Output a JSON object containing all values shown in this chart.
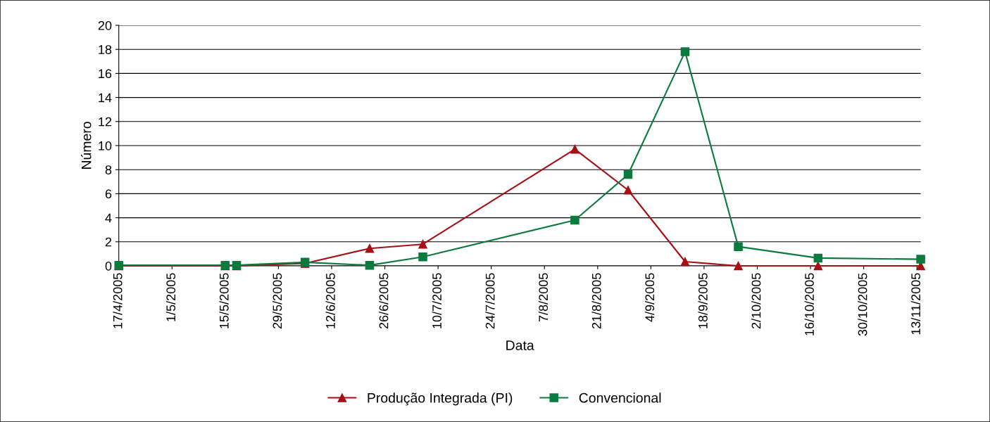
{
  "chart_data": {
    "type": "line",
    "xlabel": "Data",
    "ylabel": "Número",
    "xlim": [
      "2005-04-17",
      "2005-11-14"
    ],
    "ylim": [
      0,
      20
    ],
    "yticks": [
      0,
      2,
      4,
      6,
      8,
      10,
      12,
      14,
      16,
      18,
      20
    ],
    "xticks": [
      {
        "value": "2005-04-17",
        "label": "17/4/2005"
      },
      {
        "value": "2005-05-01",
        "label": "1/5/2005"
      },
      {
        "value": "2005-05-15",
        "label": "15/5/2005"
      },
      {
        "value": "2005-05-29",
        "label": "29/5/2005"
      },
      {
        "value": "2005-06-12",
        "label": "12/6/2005"
      },
      {
        "value": "2005-06-26",
        "label": "26/6/2005"
      },
      {
        "value": "2005-07-10",
        "label": "10/7/2005"
      },
      {
        "value": "2005-07-24",
        "label": "24/7/2005"
      },
      {
        "value": "2005-08-07",
        "label": "7/8/2005"
      },
      {
        "value": "2005-08-21",
        "label": "21/8/2005"
      },
      {
        "value": "2005-09-04",
        "label": "4/9/2005"
      },
      {
        "value": "2005-09-18",
        "label": "18/9/2005"
      },
      {
        "value": "2005-10-02",
        "label": "2/10/2005"
      },
      {
        "value": "2005-10-16",
        "label": "16/10/2005"
      },
      {
        "value": "2005-10-30",
        "label": "30/10/2005"
      },
      {
        "value": "2005-11-13",
        "label": "13/11/2005"
      }
    ],
    "x": [
      "2005-04-17",
      "2005-05-15",
      "2005-05-18",
      "2005-06-05",
      "2005-06-22",
      "2005-07-06",
      "2005-08-15",
      "2005-08-29",
      "2005-09-13",
      "2005-09-27",
      "2005-10-18",
      "2005-11-14"
    ],
    "grid": "y",
    "legend": "bottom",
    "line_style": "solid",
    "series": [
      {
        "name": "Produção Integrada (PI)",
        "color": "#a50f15",
        "marker": "triangle",
        "values": [
          0,
          0,
          0,
          0.2,
          1.45,
          1.8,
          9.7,
          6.3,
          0.35,
          0,
          0,
          0
        ]
      },
      {
        "name": "Convencional",
        "color": "#0b7a3e",
        "marker": "square",
        "values": [
          0.05,
          0.05,
          0.05,
          0.3,
          0.05,
          0.75,
          3.8,
          7.6,
          17.8,
          1.6,
          0.65,
          0.55
        ]
      }
    ]
  }
}
